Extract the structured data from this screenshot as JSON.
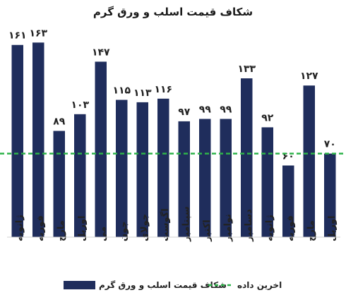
{
  "chart_data": {
    "type": "bar",
    "title": "شکاف قیمت اسلب و ورق گرم",
    "categories": [
      "ژانویه",
      "فوریه",
      "مارچ",
      "اوریل",
      "می",
      "جون",
      "جولای",
      "اگوست",
      "سپتامبر",
      "اکتبر",
      "نوامبر",
      "دسامبر",
      "ژانویه",
      "فوریه",
      "مارچ",
      "اوریل"
    ],
    "series": [
      {
        "name": "شکاف قیمت اسلب و ورق گرم",
        "values": [
          161,
          163,
          89,
          103,
          147,
          115,
          113,
          116,
          97,
          99,
          99,
          133,
          92,
          60,
          127,
          70
        ],
        "value_labels": [
          "۱۶۱",
          "۱۶۳",
          "۸۹",
          "۱۰۳",
          "۱۴۷",
          "۱۱۵",
          "۱۱۳",
          "۱۱۶",
          "۹۷",
          "۹۹",
          "۹۹",
          "۱۳۳",
          "۹۲",
          "۶۰",
          "۱۲۷",
          "۷۰"
        ],
        "color": "#1f2d5c"
      }
    ],
    "reference_line": {
      "name": "اخرین داده",
      "value": 70,
      "color": "#2eb34a",
      "style": "dashed"
    },
    "ylim": [
      0,
      175
    ],
    "grid": false,
    "legend_position": "bottom"
  }
}
